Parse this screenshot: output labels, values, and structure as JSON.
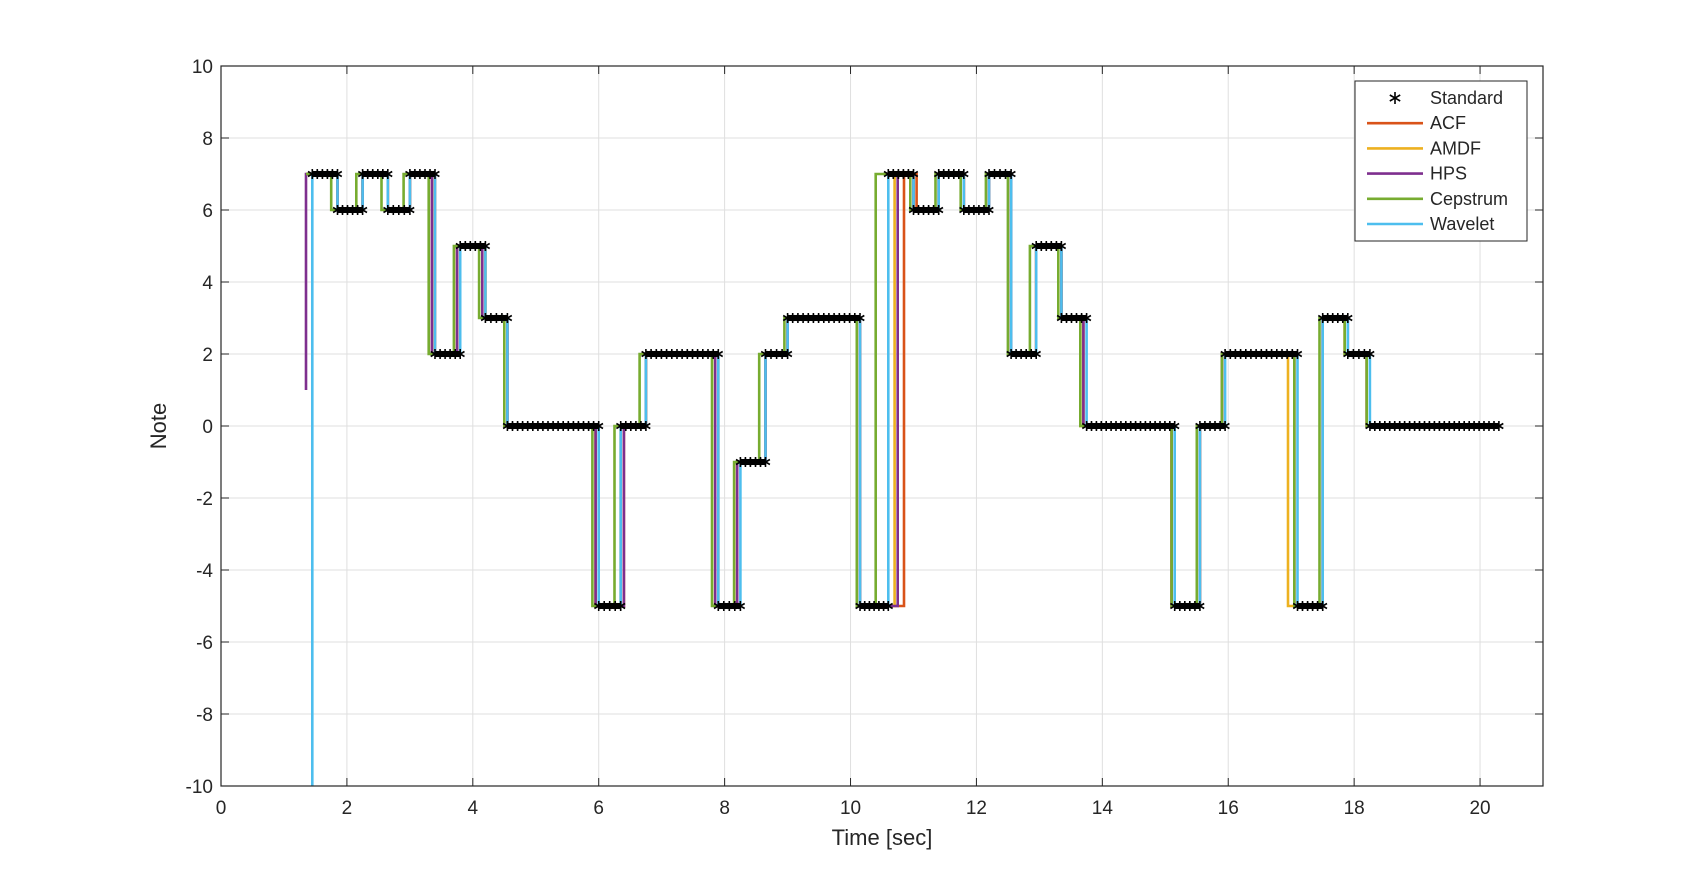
{
  "chart_data": {
    "type": "line",
    "title": "",
    "xlabel": "Time [sec]",
    "ylabel": "Note",
    "xlim": [
      0,
      21
    ],
    "ylim": [
      -10,
      10
    ],
    "xticks": [
      0,
      2,
      4,
      6,
      8,
      10,
      12,
      14,
      16,
      18,
      20
    ],
    "yticks": [
      -10,
      -8,
      -6,
      -4,
      -2,
      0,
      2,
      4,
      6,
      8,
      10
    ],
    "grid": true,
    "legend_position": "top-right",
    "standard_segments": [
      {
        "t0": 1.45,
        "t1": 1.85,
        "note": 7
      },
      {
        "t0": 1.85,
        "t1": 2.25,
        "note": 6
      },
      {
        "t0": 2.25,
        "t1": 2.65,
        "note": 7
      },
      {
        "t0": 2.65,
        "t1": 3.0,
        "note": 6
      },
      {
        "t0": 3.0,
        "t1": 3.4,
        "note": 7
      },
      {
        "t0": 3.4,
        "t1": 3.8,
        "note": 2
      },
      {
        "t0": 3.8,
        "t1": 4.2,
        "note": 5
      },
      {
        "t0": 4.2,
        "t1": 4.55,
        "note": 3
      },
      {
        "t0": 4.55,
        "t1": 6.0,
        "note": 0
      },
      {
        "t0": 6.0,
        "t1": 6.35,
        "note": -5
      },
      {
        "t0": 6.35,
        "t1": 6.75,
        "note": 0
      },
      {
        "t0": 6.75,
        "t1": 7.9,
        "note": 2
      },
      {
        "t0": 7.9,
        "t1": 8.25,
        "note": -5
      },
      {
        "t0": 8.25,
        "t1": 8.65,
        "note": -1
      },
      {
        "t0": 8.65,
        "t1": 9.0,
        "note": 2
      },
      {
        "t0": 9.0,
        "t1": 10.15,
        "note": 3
      },
      {
        "t0": 10.15,
        "t1": 10.6,
        "note": -5
      },
      {
        "t0": 10.6,
        "t1": 11.0,
        "note": 7
      },
      {
        "t0": 11.0,
        "t1": 11.4,
        "note": 6
      },
      {
        "t0": 11.4,
        "t1": 11.8,
        "note": 7
      },
      {
        "t0": 11.8,
        "t1": 12.2,
        "note": 6
      },
      {
        "t0": 12.2,
        "t1": 12.55,
        "note": 7
      },
      {
        "t0": 12.55,
        "t1": 12.95,
        "note": 2
      },
      {
        "t0": 12.95,
        "t1": 13.35,
        "note": 5
      },
      {
        "t0": 13.35,
        "t1": 13.75,
        "note": 3
      },
      {
        "t0": 13.75,
        "t1": 15.15,
        "note": 0
      },
      {
        "t0": 15.15,
        "t1": 15.55,
        "note": -5
      },
      {
        "t0": 15.55,
        "t1": 15.95,
        "note": 0
      },
      {
        "t0": 15.95,
        "t1": 17.1,
        "note": 2
      },
      {
        "t0": 17.1,
        "t1": 17.5,
        "note": -5
      },
      {
        "t0": 17.5,
        "t1": 17.9,
        "note": 3
      },
      {
        "t0": 17.9,
        "t1": 18.25,
        "note": 2
      },
      {
        "t0": 18.25,
        "t1": 20.3,
        "note": 0
      }
    ],
    "series": [
      {
        "name": "Standard",
        "color": "#000000",
        "marker": "asterisk"
      },
      {
        "name": "ACF",
        "color": "#D95319",
        "start": {
          "t": 1.35,
          "note": 7
        },
        "transition_offsets": [
          0.0,
          0.0,
          0.0,
          0.0,
          0.0,
          -0.05,
          0.0,
          0.0,
          -0.05,
          0.05,
          0.0,
          0.0,
          -0.05,
          0.0,
          0.0,
          0.0,
          0.25,
          0.05,
          0.0,
          0.0,
          0.0,
          0.0,
          0.0,
          0.0,
          -0.05,
          -0.05,
          0.0,
          -0.05,
          -0.05,
          0.0,
          -0.05,
          -0.05
        ]
      },
      {
        "name": "AMDF",
        "color": "#EDB120",
        "start": {
          "t": 1.35,
          "note": 7
        },
        "transition_offsets": [
          0.0,
          0.0,
          0.0,
          0.0,
          -0.05,
          -0.05,
          0.0,
          0.0,
          -0.05,
          0.0,
          0.0,
          -0.05,
          -0.05,
          0.0,
          0.0,
          0.0,
          0.1,
          0.0,
          0.0,
          0.0,
          0.0,
          0.0,
          0.0,
          0.0,
          -0.1,
          -0.05,
          0.0,
          -0.05,
          -0.15,
          0.0,
          -0.05,
          -0.05
        ]
      },
      {
        "name": "HPS",
        "color": "#7E2F8E",
        "start": {
          "t": 1.35,
          "note": 1
        },
        "transition_offsets": [
          0.0,
          0.0,
          0.0,
          0.0,
          -0.05,
          -0.05,
          -0.05,
          0.0,
          -0.05,
          0.05,
          0.0,
          -0.05,
          -0.05,
          0.0,
          0.0,
          0.0,
          0.15,
          0.0,
          0.0,
          0.0,
          0.0,
          0.0,
          0.0,
          0.0,
          -0.05,
          -0.05,
          0.0,
          -0.05,
          -0.05,
          0.0,
          0.0,
          -0.05
        ]
      },
      {
        "name": "Cepstrum",
        "color": "#77AC30",
        "start": {
          "t": 1.35,
          "note": 7
        },
        "transition_offsets": [
          -0.1,
          -0.1,
          -0.1,
          -0.1,
          -0.1,
          -0.1,
          -0.1,
          -0.05,
          -0.1,
          -0.1,
          -0.1,
          -0.1,
          -0.1,
          -0.1,
          -0.05,
          -0.05,
          -0.2,
          -0.05,
          -0.05,
          -0.05,
          -0.05,
          -0.05,
          -0.1,
          -0.05,
          -0.1,
          -0.05,
          -0.05,
          -0.05,
          -0.05,
          -0.05,
          -0.05,
          -0.05
        ]
      },
      {
        "name": "Wavelet",
        "color": "#4DBEEE",
        "start": {
          "t": 1.45,
          "note": -10
        },
        "transition_offsets": [
          0.0,
          0.0,
          0.0,
          0.0,
          0.0,
          0.0,
          0.0,
          0.0,
          0.0,
          0.0,
          0.0,
          0.0,
          0.0,
          0.0,
          0.0,
          0.0,
          0.0,
          0.0,
          0.0,
          0.0,
          0.0,
          0.0,
          0.0,
          0.0,
          0.0,
          0.0,
          0.0,
          0.0,
          0.0,
          0.0,
          0.0,
          0.0
        ]
      }
    ]
  },
  "legend": {
    "entries": [
      "Standard",
      "ACF",
      "AMDF",
      "HPS",
      "Cepstrum",
      "Wavelet"
    ]
  }
}
